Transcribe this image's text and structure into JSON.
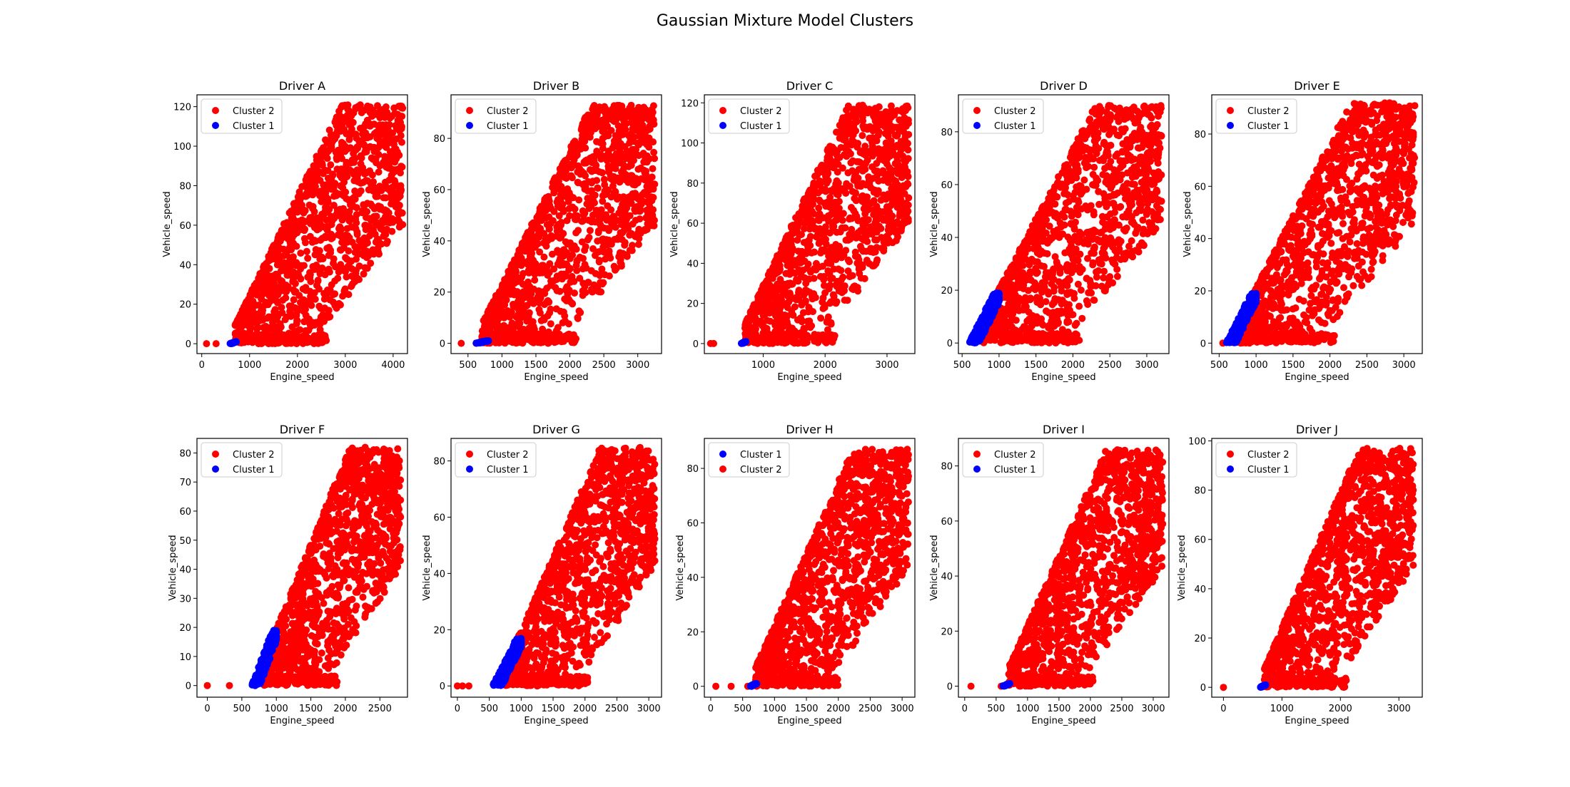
{
  "figure": {
    "title": "Gaussian Mixture Model Clusters"
  },
  "colors": {
    "cluster1": "#0000ff",
    "cluster2": "#ff0000",
    "axis": "#000000"
  },
  "chart_data": [
    {
      "type": "scatter",
      "title": "Driver A",
      "xlabel": "Engine_speed",
      "ylabel": "Vehicle_speed",
      "xlim": [
        -100,
        4300
      ],
      "ylim": [
        -5,
        126
      ],
      "xticks": [
        0,
        1000,
        2000,
        3000,
        4000
      ],
      "yticks": [
        0,
        20,
        40,
        60,
        80,
        100,
        120
      ],
      "legend": [
        "Cluster 2",
        "Cluster 1"
      ],
      "legend_position": "upper-left",
      "cluster1": {
        "xmin": 580,
        "xmax": 720,
        "ymax": 1,
        "lowx": []
      },
      "cluster2": {
        "xmin": 700,
        "xmax": 4200,
        "ymax": 121,
        "lowx": [
          100,
          300
        ]
      }
    },
    {
      "type": "scatter",
      "title": "Driver B",
      "xlabel": "Engine_speed",
      "ylabel": "Vehicle_speed",
      "xlim": [
        250,
        3350
      ],
      "ylim": [
        -4,
        97
      ],
      "xticks": [
        500,
        1000,
        1500,
        2000,
        2500,
        3000
      ],
      "yticks": [
        0,
        20,
        40,
        60,
        80
      ],
      "legend": [
        "Cluster 2",
        "Cluster 1"
      ],
      "legend_position": "upper-left",
      "cluster1": {
        "xmin": 600,
        "xmax": 800,
        "ymax": 1,
        "lowx": []
      },
      "cluster2": {
        "xmin": 700,
        "xmax": 3250,
        "ymax": 93,
        "lowx": [
          400,
          620
        ]
      }
    },
    {
      "type": "scatter",
      "title": "Driver C",
      "xlabel": "Engine_speed",
      "ylabel": "Vehicle_speed",
      "xlim": [
        50,
        3450
      ],
      "ylim": [
        -5,
        124
      ],
      "xticks": [
        1000,
        2000,
        3000
      ],
      "yticks": [
        0,
        20,
        40,
        60,
        80,
        100,
        120
      ],
      "legend": [
        "Cluster 2",
        "Cluster 1"
      ],
      "legend_position": "upper-left",
      "cluster1": {
        "xmin": 640,
        "xmax": 720,
        "ymax": 1,
        "lowx": []
      },
      "cluster2": {
        "xmin": 700,
        "xmax": 3350,
        "ymax": 119,
        "lowx": [
          150,
          200
        ]
      }
    },
    {
      "type": "scatter",
      "title": "Driver D",
      "xlabel": "Engine_speed",
      "ylabel": "Vehicle_speed",
      "xlim": [
        450,
        3300
      ],
      "ylim": [
        -4,
        94
      ],
      "xticks": [
        500,
        1000,
        1500,
        2000,
        2500,
        3000
      ],
      "yticks": [
        0,
        20,
        40,
        60,
        80
      ],
      "legend": [
        "Cluster 2",
        "Cluster 1"
      ],
      "legend_position": "upper-left",
      "cluster1": {
        "xmin": 600,
        "xmax": 1000,
        "ymax": 19,
        "lowx": []
      },
      "cluster2": {
        "xmin": 750,
        "xmax": 3200,
        "ymax": 90,
        "lowx": []
      }
    },
    {
      "type": "scatter",
      "title": "Driver E",
      "xlabel": "Engine_speed",
      "ylabel": "Vehicle_speed",
      "xlim": [
        400,
        3250
      ],
      "ylim": [
        -4,
        95
      ],
      "xticks": [
        500,
        1000,
        1500,
        2000,
        2500,
        3000
      ],
      "yticks": [
        0,
        20,
        40,
        60,
        80
      ],
      "legend": [
        "Cluster 2",
        "Cluster 1"
      ],
      "legend_position": "upper-left",
      "cluster1": {
        "xmin": 600,
        "xmax": 1000,
        "ymax": 19,
        "lowx": []
      },
      "cluster2": {
        "xmin": 750,
        "xmax": 3150,
        "ymax": 92,
        "lowx": [
          550
        ]
      }
    },
    {
      "type": "scatter",
      "title": "Driver F",
      "xlabel": "Engine_speed",
      "ylabel": "Vehicle_speed",
      "xlim": [
        -150,
        2900
      ],
      "ylim": [
        -4,
        85
      ],
      "xticks": [
        0,
        500,
        1000,
        1500,
        2000,
        2500
      ],
      "yticks": [
        0,
        10,
        20,
        30,
        40,
        50,
        60,
        70,
        80
      ],
      "legend": [
        "Cluster 2",
        "Cluster 1"
      ],
      "legend_position": "upper-left",
      "cluster1": {
        "xmin": 650,
        "xmax": 1000,
        "ymax": 19,
        "lowx": []
      },
      "cluster2": {
        "xmin": 780,
        "xmax": 2800,
        "ymax": 82,
        "lowx": [
          0,
          320
        ]
      }
    },
    {
      "type": "scatter",
      "title": "Driver G",
      "xlabel": "Engine_speed",
      "ylabel": "Vehicle_speed",
      "xlim": [
        -100,
        3200
      ],
      "ylim": [
        -4,
        88
      ],
      "xticks": [
        0,
        500,
        1000,
        1500,
        2000,
        2500,
        3000
      ],
      "yticks": [
        0,
        20,
        40,
        60,
        80
      ],
      "legend": [
        "Cluster 2",
        "Cluster 1"
      ],
      "legend_position": "upper-left",
      "cluster1": {
        "xmin": 560,
        "xmax": 1000,
        "ymax": 17,
        "lowx": []
      },
      "cluster2": {
        "xmin": 750,
        "xmax": 3100,
        "ymax": 85,
        "lowx": [
          0,
          80,
          180
        ]
      }
    },
    {
      "type": "scatter",
      "title": "Driver H",
      "xlabel": "Engine_speed",
      "ylabel": "Vehicle_speed",
      "xlim": [
        -100,
        3200
      ],
      "ylim": [
        -4,
        91
      ],
      "xticks": [
        0,
        500,
        1000,
        1500,
        2000,
        2500,
        3000
      ],
      "yticks": [
        0,
        20,
        40,
        60,
        80
      ],
      "legend": [
        "Cluster 1",
        "Cluster 2"
      ],
      "legend_position": "upper-left",
      "cluster1": {
        "xmin": 600,
        "xmax": 720,
        "ymax": 1,
        "lowx": []
      },
      "cluster2": {
        "xmin": 700,
        "xmax": 3100,
        "ymax": 87,
        "lowx": [
          80,
          320,
          580
        ]
      }
    },
    {
      "type": "scatter",
      "title": "Driver I",
      "xlabel": "Engine_speed",
      "ylabel": "Vehicle_speed",
      "xlim": [
        -100,
        3250
      ],
      "ylim": [
        -4,
        90
      ],
      "xticks": [
        0,
        500,
        1000,
        1500,
        2000,
        2500,
        3000
      ],
      "yticks": [
        0,
        20,
        40,
        60,
        80
      ],
      "legend": [
        "Cluster 2",
        "Cluster 1"
      ],
      "legend_position": "upper-left",
      "cluster1": {
        "xmin": 600,
        "xmax": 720,
        "ymax": 1,
        "lowx": []
      },
      "cluster2": {
        "xmin": 700,
        "xmax": 3150,
        "ymax": 86,
        "lowx": [
          100,
          580
        ]
      }
    },
    {
      "type": "scatter",
      "title": "Driver J",
      "xlabel": "Engine_speed",
      "ylabel": "Vehicle_speed",
      "xlim": [
        -200,
        3400
      ],
      "ylim": [
        -4,
        101
      ],
      "xticks": [
        0,
        1000,
        2000,
        3000
      ],
      "yticks": [
        0,
        20,
        40,
        60,
        80,
        100
      ],
      "legend": [
        "Cluster 2",
        "Cluster 1"
      ],
      "legend_position": "upper-left",
      "cluster1": {
        "xmin": 620,
        "xmax": 720,
        "ymax": 1,
        "lowx": []
      },
      "cluster2": {
        "xmin": 700,
        "xmax": 3250,
        "ymax": 97,
        "lowx": [
          0
        ]
      }
    }
  ]
}
